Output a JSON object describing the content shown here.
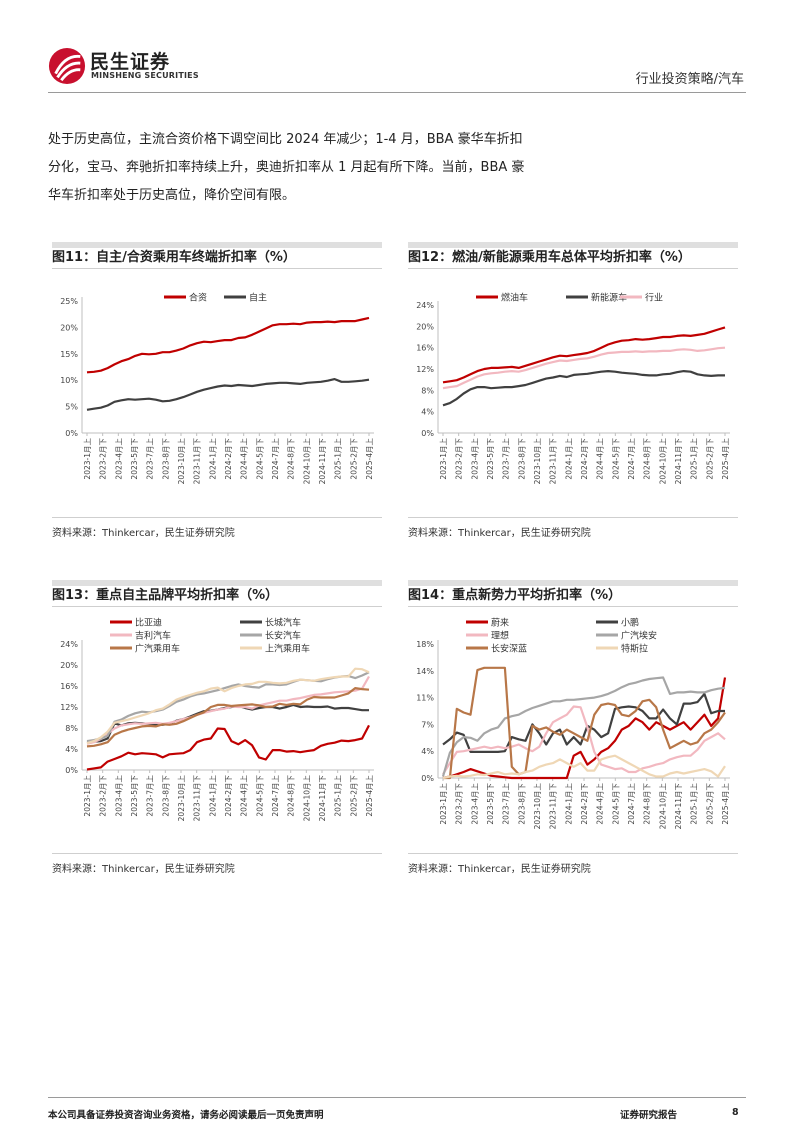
{
  "header": {
    "logo_cn": "民生证券",
    "logo_en": "MINSHENG SECURITIES",
    "section": "行业投资策略/汽车"
  },
  "body_text": [
    "处于历史高位，主流合资价格下调空间比 2024 年减少；1-4 月，BBA 豪华车折扣",
    "分化，宝马、奔驰折扣率持续上升，奥迪折扣率从 1 月起有所下降。当前，BBA 豪",
    "华车折扣率处于历史高位，降价空间有限。"
  ],
  "figures": [
    {
      "title": "图11：自主/合资乘用车终端折扣率（%）",
      "source": "资料来源：Thinkercar，民生证券研究院"
    },
    {
      "title": "图12：燃油/新能源乘用车总体平均折扣率（%）",
      "source": "资料来源：Thinkercar，民生证券研究院"
    },
    {
      "title": "图13：重点自主品牌平均折扣率（%）",
      "source": "资料来源：Thinkercar，民生证券研究院"
    },
    {
      "title": "图14：重点新势力平均折扣率（%）",
      "source": "资料来源：Thinkercar，民生证券研究院"
    }
  ],
  "footer": {
    "disclaimer": "本公司具备证券投资咨询业务资格，请务必阅读最后一页免责声明",
    "report_type": "证券研究报告",
    "page": "8"
  },
  "chart_data": [
    {
      "type": "line",
      "x_labels": [
        "2023-1月上",
        "2023-2月下",
        "2023-4月上",
        "2023-5月下",
        "2023-7月上",
        "2023-8月下",
        "2023-10月上",
        "2023-11月下",
        "2024-1月上",
        "2024-2月下",
        "2024-4月上",
        "2024-5月下",
        "2024-7月上",
        "2024-8月下",
        "2024-10月上",
        "2024-11月下",
        "2025-1月上",
        "2025-2月下",
        "2025-4月上"
      ],
      "y_ticks": [
        "0%",
        "5%",
        "10%",
        "15%",
        "20%",
        "25%"
      ],
      "ylim": [
        0,
        25
      ],
      "legend_position": "top",
      "series": [
        {
          "name": "合资",
          "color": "#c00000",
          "values": [
            11.5,
            11.6,
            11.8,
            12.3,
            13.0,
            13.6,
            14.0,
            14.6,
            15.0,
            14.9,
            15.0,
            15.3,
            15.3,
            15.6,
            16.0,
            16.6,
            17.0,
            17.3,
            17.2,
            17.4,
            17.6,
            17.6,
            18.0,
            18.1,
            18.6,
            19.2,
            19.8,
            20.4,
            20.6,
            20.6,
            20.7,
            20.6,
            20.9,
            21.0,
            21.0,
            21.1,
            21.0,
            21.2,
            21.2,
            21.2,
            21.5,
            21.8
          ]
        },
        {
          "name": "自主",
          "color": "#404040",
          "values": [
            4.4,
            4.6,
            4.8,
            5.2,
            5.9,
            6.2,
            6.4,
            6.3,
            6.4,
            6.5,
            6.3,
            6.0,
            6.1,
            6.4,
            6.8,
            7.3,
            7.8,
            8.2,
            8.5,
            8.8,
            9.0,
            8.9,
            9.1,
            9.0,
            8.9,
            9.1,
            9.3,
            9.4,
            9.5,
            9.5,
            9.4,
            9.3,
            9.5,
            9.6,
            9.7,
            9.9,
            10.2,
            9.7,
            9.7,
            9.8,
            9.9,
            10.1
          ]
        }
      ]
    },
    {
      "type": "line",
      "x_labels": [
        "2023-1月上",
        "2023-2月下",
        "2023-4月上",
        "2023-5月下",
        "2023-7月上",
        "2023-8月下",
        "2023-10月上",
        "2023-11月下",
        "2024-1月上",
        "2024-2月下",
        "2024-4月上",
        "2024-5月下",
        "2024-7月上",
        "2024-8月下",
        "2024-10月上",
        "2024-11月下",
        "2025-1月上",
        "2025-2月下",
        "2025-4月上"
      ],
      "y_ticks": [
        "0%",
        "4%",
        "8%",
        "12%",
        "16%",
        "20%",
        "24%"
      ],
      "ylim": [
        0,
        24
      ],
      "legend_position": "top",
      "series": [
        {
          "name": "燃油车",
          "color": "#c00000",
          "values": [
            9.5,
            9.7,
            9.9,
            10.4,
            11.0,
            11.6,
            12.0,
            12.2,
            12.2,
            12.3,
            12.4,
            12.2,
            12.6,
            13.0,
            13.4,
            13.8,
            14.2,
            14.5,
            14.4,
            14.6,
            14.8,
            15.0,
            15.4,
            16.0,
            16.6,
            17.0,
            17.3,
            17.4,
            17.6,
            17.5,
            17.6,
            17.8,
            18.0,
            18.0,
            18.2,
            18.3,
            18.2,
            18.4,
            18.6,
            19.0,
            19.4,
            19.8
          ]
        },
        {
          "name": "新能源车",
          "color": "#404040",
          "values": [
            5.2,
            5.6,
            6.4,
            7.4,
            8.2,
            8.6,
            8.6,
            8.4,
            8.5,
            8.6,
            8.6,
            8.8,
            9.0,
            9.4,
            9.8,
            10.2,
            10.4,
            10.7,
            10.5,
            10.9,
            11.0,
            11.1,
            11.3,
            11.5,
            11.6,
            11.5,
            11.3,
            11.2,
            11.1,
            10.9,
            10.8,
            10.8,
            11.0,
            11.1,
            11.4,
            11.6,
            11.5,
            11.0,
            10.8,
            10.7,
            10.8,
            10.8
          ]
        },
        {
          "name": "行业",
          "color": "#f2b8c0",
          "values": [
            8.4,
            8.6,
            8.8,
            9.4,
            10.0,
            10.6,
            11.0,
            11.2,
            11.3,
            11.5,
            11.6,
            11.5,
            11.8,
            12.2,
            12.6,
            13.0,
            13.3,
            13.6,
            13.5,
            13.7,
            13.9,
            14.0,
            14.3,
            14.7,
            15.0,
            15.1,
            15.2,
            15.2,
            15.3,
            15.2,
            15.3,
            15.3,
            15.4,
            15.4,
            15.6,
            15.7,
            15.6,
            15.4,
            15.5,
            15.7,
            15.9,
            16.0
          ]
        }
      ]
    },
    {
      "type": "line",
      "x_labels": [
        "2023-1月上",
        "2023-2月下",
        "2023-4月上",
        "2023-5月下",
        "2023-7月上",
        "2023-8月下",
        "2023-10月上",
        "2023-11月下",
        "2024-1月上",
        "2024-2月下",
        "2024-4月上",
        "2024-5月下",
        "2024-7月上",
        "2024-8月下",
        "2024-10月上",
        "2024-11月下",
        "2025-1月上",
        "2025-2月下",
        "2025-4月上"
      ],
      "y_ticks": [
        "0%",
        "4%",
        "8%",
        "12%",
        "16%",
        "20%",
        "24%"
      ],
      "ylim": [
        0,
        24
      ],
      "legend_position": "top",
      "series": [
        {
          "name": "比亚迪",
          "color": "#c00000",
          "values": [
            0.1,
            0.3,
            0.5,
            1.6,
            2.1,
            2.6,
            3.3,
            3.0,
            3.2,
            3.1,
            3.0,
            2.4,
            3.0,
            3.1,
            3.2,
            3.8,
            5.3,
            5.8,
            6.0,
            7.9,
            7.8,
            5.5,
            4.9,
            5.7,
            4.7,
            2.4,
            2.0,
            3.8,
            3.8,
            3.5,
            3.6,
            3.4,
            3.6,
            3.8,
            4.6,
            5.0,
            5.2,
            5.6,
            5.5,
            5.7,
            6.0,
            8.5
          ]
        },
        {
          "name": "长城汽车",
          "color": "#404040",
          "values": [
            5.2,
            5.4,
            5.5,
            6.0,
            8.9,
            8.5,
            8.9,
            9.0,
            8.9,
            8.8,
            8.6,
            8.6,
            8.8,
            9.4,
            9.7,
            10.2,
            10.7,
            11.2,
            11.3,
            11.5,
            11.8,
            12.0,
            12.2,
            11.8,
            11.5,
            11.8,
            12.0,
            12.0,
            11.7,
            12.0,
            12.4,
            12.0,
            12.1,
            12.0,
            12.0,
            12.1,
            11.7,
            11.8,
            11.8,
            11.6,
            11.4,
            11.4
          ]
        },
        {
          "name": "吉利汽车",
          "color": "#f2b8c0",
          "values": [
            5.0,
            5.3,
            5.9,
            6.9,
            7.9,
            8.5,
            8.7,
            8.9,
            8.8,
            8.9,
            9.0,
            8.8,
            9.0,
            9.3,
            9.7,
            10.0,
            10.5,
            10.9,
            11.2,
            11.5,
            11.7,
            12.1,
            12.0,
            12.0,
            11.7,
            12.3,
            12.6,
            12.9,
            13.2,
            13.2,
            13.5,
            13.7,
            14.0,
            14.3,
            14.4,
            14.6,
            14.8,
            14.9,
            15.0,
            15.1,
            15.5,
            17.8
          ]
        },
        {
          "name": "长安汽车",
          "color": "#a6a6a6",
          "values": [
            5.5,
            5.7,
            6.0,
            6.5,
            9.2,
            9.6,
            10.3,
            10.8,
            11.1,
            11.0,
            11.2,
            11.5,
            12.2,
            13.0,
            13.4,
            14.0,
            14.4,
            14.6,
            14.9,
            15.2,
            15.6,
            16.0,
            16.3,
            16.0,
            15.8,
            15.7,
            16.3,
            16.3,
            16.2,
            16.3,
            16.8,
            17.2,
            17.1,
            17.0,
            16.9,
            17.3,
            17.6,
            17.8,
            17.9,
            17.5,
            18.0,
            18.6
          ]
        },
        {
          "name": "广汽乘用车",
          "color": "#b87748",
          "values": [
            4.5,
            4.6,
            4.9,
            5.3,
            6.7,
            7.3,
            7.7,
            8.0,
            8.3,
            8.4,
            8.3,
            8.7,
            8.6,
            8.8,
            9.3,
            9.9,
            10.5,
            11.0,
            12.0,
            12.4,
            12.4,
            12.2,
            12.3,
            12.4,
            12.5,
            12.3,
            12.0,
            12.1,
            12.6,
            12.4,
            12.6,
            12.5,
            13.4,
            13.9,
            13.8,
            13.8,
            13.8,
            14.2,
            14.6,
            15.6,
            15.4,
            15.3
          ]
        },
        {
          "name": "上汽乘用车",
          "color": "#efd7b5",
          "values": [
            5.1,
            5.5,
            6.2,
            7.3,
            9.0,
            9.3,
            9.6,
            10.0,
            10.4,
            10.8,
            11.4,
            11.7,
            12.5,
            13.4,
            13.9,
            14.3,
            14.7,
            15.0,
            15.5,
            15.7,
            15.0,
            15.6,
            16.0,
            16.3,
            16.4,
            16.8,
            16.8,
            16.6,
            16.5,
            16.6,
            17.0,
            17.2,
            17.1,
            17.0,
            17.3,
            17.5,
            17.7,
            17.8,
            17.8,
            19.3,
            19.2,
            18.6
          ]
        }
      ]
    },
    {
      "type": "line",
      "x_labels": [
        "2023-1月上",
        "2023-2月下",
        "2023-4月上",
        "2023-5月下",
        "2023-7月上",
        "2023-8月下",
        "2023-10月上",
        "2023-11月下",
        "2024-1月上",
        "2024-2月下",
        "2024-4月上",
        "2024-5月下",
        "2024-7月上",
        "2024-8月下",
        "2024-10月上",
        "2024-11月下",
        "2025-1月上",
        "2025-2月下",
        "2025-4月上"
      ],
      "y_ticks": [
        "0%",
        "4%",
        "7%",
        "11%",
        "14%",
        "18%"
      ],
      "ylim": [
        0,
        18
      ],
      "legend_position": "top",
      "series": [
        {
          "name": "蔚来",
          "color": "#c00000",
          "values": [
            0,
            0.2,
            0.5,
            0.8,
            1.2,
            0.9,
            0.6,
            0.3,
            0.2,
            0.1,
            0,
            0,
            0,
            0,
            0,
            0,
            0,
            0,
            0,
            3.0,
            3.5,
            1.8,
            2.5,
            3.5,
            4.0,
            5.0,
            6.5,
            7.0,
            8.0,
            7.5,
            6.5,
            7.5,
            7.0,
            6.5,
            7.0,
            7.5,
            6.5,
            7.5,
            8.5,
            7.0,
            8.0,
            13.5
          ]
        },
        {
          "name": "小鹏",
          "color": "#404040",
          "values": [
            4.5,
            5.2,
            6.1,
            5.8,
            3.5,
            3.5,
            3.5,
            3.5,
            3.5,
            3.6,
            5.5,
            5.2,
            5.0,
            7.2,
            6.0,
            4.5,
            6.0,
            6.5,
            4.5,
            5.5,
            4.5,
            7.0,
            6.5,
            5.5,
            6.0,
            9.3,
            9.5,
            9.6,
            9.5,
            9.0,
            8.0,
            8.0,
            9.2,
            8.0,
            7.2,
            10.0,
            10.0,
            10.2,
            11.3,
            8.7,
            9.0,
            9.0
          ]
        },
        {
          "name": "理想",
          "color": "#f2b8c0",
          "values": [
            0.5,
            2.0,
            3.5,
            3.6,
            3.8,
            4.0,
            4.2,
            4.0,
            4.2,
            4.0,
            4.2,
            4.5,
            4.0,
            3.6,
            4.2,
            6.0,
            7.5,
            8.0,
            8.5,
            9.6,
            9.5,
            6.8,
            3.5,
            1.8,
            1.5,
            1.2,
            1.3,
            0.8,
            0.8,
            1.3,
            1.5,
            1.8,
            2.0,
            2.5,
            2.8,
            3.0,
            3.0,
            3.8,
            5.0,
            5.5,
            6.0,
            5.2
          ]
        },
        {
          "name": "广汽埃安",
          "color": "#a6a6a6",
          "values": [
            0.2,
            3.4,
            4.8,
            5.5,
            5.4,
            5.0,
            6.0,
            6.5,
            6.8,
            8.0,
            8.3,
            8.5,
            9.0,
            9.4,
            9.7,
            10.0,
            10.3,
            10.3,
            10.5,
            10.5,
            10.6,
            10.7,
            10.8,
            11.0,
            11.3,
            11.7,
            12.2,
            12.6,
            12.8,
            13.1,
            13.3,
            13.4,
            13.5,
            11.3,
            11.5,
            11.5,
            11.6,
            11.5,
            11.5,
            11.8,
            12.0,
            12.1
          ]
        },
        {
          "name": "长安深蓝",
          "color": "#b87748",
          "values": [
            0,
            0,
            9.3,
            8.8,
            8.5,
            14.5,
            14.8,
            14.8,
            14.8,
            14.8,
            1.5,
            0.5,
            0.8,
            7.0,
            6.5,
            6.8,
            6.2,
            5.8,
            6.5,
            6.0,
            5.5,
            5.0,
            8.5,
            9.8,
            10.0,
            9.8,
            8.5,
            8.3,
            9.0,
            10.3,
            10.5,
            9.5,
            6.5,
            4.0,
            4.5,
            5.0,
            4.5,
            4.8,
            6.0,
            6.5,
            7.5,
            8.8
          ]
        },
        {
          "name": "特斯拉",
          "color": "#efd7b5",
          "values": [
            0,
            0.2,
            0.3,
            0.2,
            0.3,
            0.5,
            0.4,
            0.6,
            0.8,
            0.5,
            0.6,
            0.5,
            0.8,
            1.0,
            1.5,
            1.8,
            2.0,
            2.5,
            2.0,
            1.5,
            2.0,
            1.0,
            1.0,
            2.5,
            2.8,
            3.0,
            2.5,
            2.0,
            1.5,
            1.0,
            0.5,
            0.2,
            0.2,
            0.6,
            0.8,
            0.6,
            0.8,
            1.0,
            1.2,
            0.9,
            0.2,
            1.6
          ]
        }
      ]
    }
  ]
}
